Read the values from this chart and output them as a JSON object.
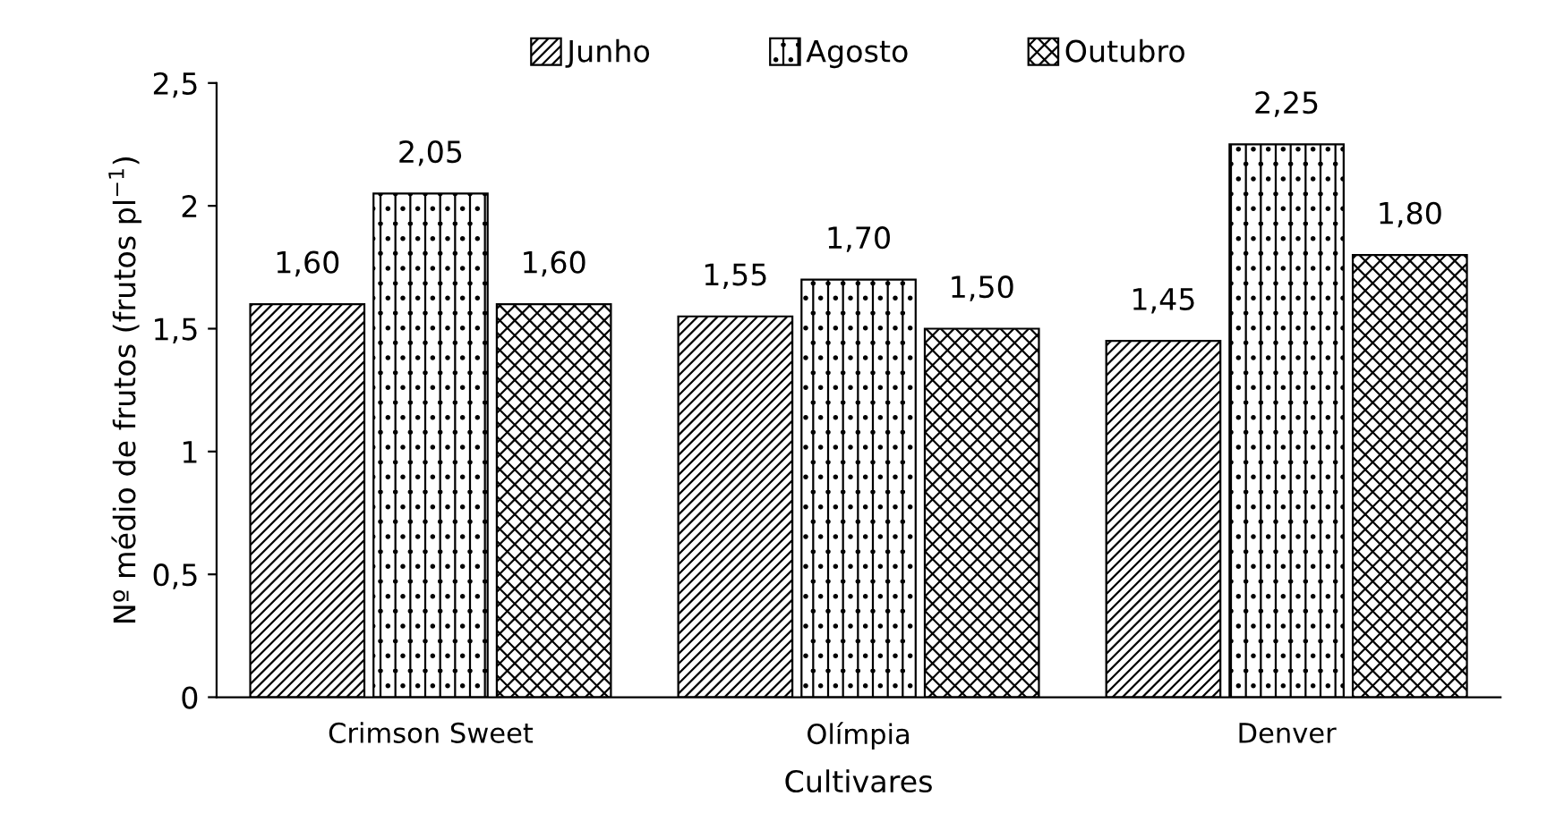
{
  "chart_data": {
    "type": "bar",
    "xlabel": "Cultivares",
    "ylabel": "Nº médio de frutos (frutos pl$^{−1}$)",
    "categories": [
      "Crimson Sweet",
      "Olímpia",
      "Denver"
    ],
    "series": [
      {
        "name": "Junho",
        "color": "#000000",
        "values": [
          1.6,
          1.55,
          1.45
        ],
        "value_labels": [
          "1,60",
          "1,55",
          "1,45"
        ]
      },
      {
        "name": "Agosto",
        "color": "#000000",
        "values": [
          2.05,
          1.7,
          2.25
        ],
        "value_labels": [
          "2,05",
          "1,70",
          "2,25"
        ]
      },
      {
        "name": "Outubro",
        "color": "#000000",
        "values": [
          1.6,
          1.5,
          1.8
        ],
        "value_labels": [
          "1,60",
          "1,50",
          "1,80"
        ]
      }
    ],
    "ylim": [
      0,
      2.5
    ],
    "yticks": [
      0,
      {
        "value": 0.5,
        "label": "0,5"
      },
      1,
      {
        "value": 1.5,
        "label": "1,5"
      },
      2,
      {
        "value": 2.5,
        "label": "2,5"
      }
    ],
    "grid": false,
    "legend": "top"
  }
}
